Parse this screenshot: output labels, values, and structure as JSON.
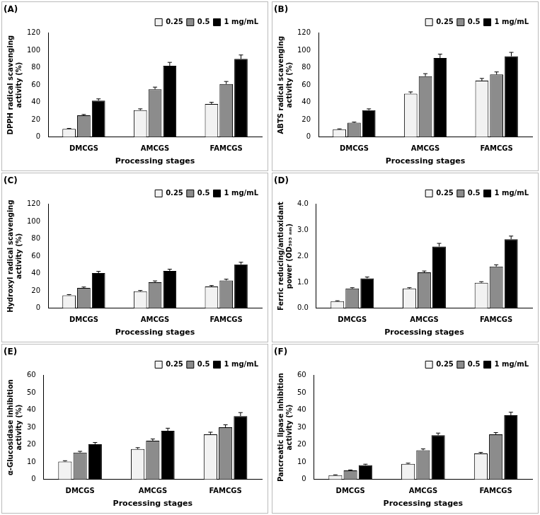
{
  "chart_data": [
    {
      "type": "bar",
      "title": "(A)",
      "x_label": "Processing stages",
      "y_label": [
        "DPPH radical scavenging",
        "activity (%)"
      ],
      "categories": [
        "DMCGS",
        "AMCGS",
        "FAMCGS"
      ],
      "series": [
        {
          "name": "0.25",
          "color": "#f2f2f2",
          "values": [
            9.5,
            31,
            38
          ],
          "errors": [
            0.5,
            1.5,
            2
          ]
        },
        {
          "name": "0.5",
          "color": "#8c8c8c",
          "values": [
            25,
            55,
            61
          ],
          "errors": [
            1,
            2.5,
            3
          ]
        },
        {
          "name": "1 mg/mL",
          "color": "#000000",
          "values": [
            42,
            82,
            90
          ],
          "errors": [
            2,
            4,
            4.5
          ]
        }
      ],
      "ylim": [
        0,
        120
      ],
      "yticks": [
        0,
        20,
        40,
        60,
        80,
        100,
        120
      ],
      "grid": false,
      "legend": "top-right"
    },
    {
      "type": "bar",
      "title": "(B)",
      "x_label": "Processing stages",
      "y_label": [
        "ABTS radical scavenging",
        "activity (%)"
      ],
      "categories": [
        "DMCGS",
        "AMCGS",
        "FAMCGS"
      ],
      "series": [
        {
          "name": "0.25",
          "color": "#f2f2f2",
          "values": [
            9,
            50,
            65
          ],
          "errors": [
            0.5,
            2,
            2.5
          ]
        },
        {
          "name": "0.5",
          "color": "#8c8c8c",
          "values": [
            16.5,
            70,
            72
          ],
          "errors": [
            0.8,
            3,
            3
          ]
        },
        {
          "name": "1 mg/mL",
          "color": "#000000",
          "values": [
            31,
            91,
            93
          ],
          "errors": [
            1.5,
            4.5,
            4.5
          ]
        }
      ],
      "ylim": [
        0,
        120
      ],
      "yticks": [
        0,
        20,
        40,
        60,
        80,
        100,
        120
      ],
      "grid": false,
      "legend": "top-right"
    },
    {
      "type": "bar",
      "title": "(C)",
      "x_label": "Processing stages",
      "y_label": [
        "Hydroxyl radical scavenging",
        "activity (%)"
      ],
      "categories": [
        "DMCGS",
        "AMCGS",
        "FAMCGS"
      ],
      "series": [
        {
          "name": "0.25",
          "color": "#f2f2f2",
          "values": [
            15,
            19.5,
            25
          ],
          "errors": [
            0.7,
            1,
            1.2
          ]
        },
        {
          "name": "0.5",
          "color": "#8c8c8c",
          "values": [
            23.5,
            30,
            32
          ],
          "errors": [
            1,
            1.5,
            1.5
          ]
        },
        {
          "name": "1 mg/mL",
          "color": "#000000",
          "values": [
            40.5,
            43,
            50.5
          ],
          "errors": [
            2,
            2,
            2.5
          ]
        }
      ],
      "ylim": [
        0,
        120
      ],
      "yticks": [
        0,
        20,
        40,
        60,
        80,
        100,
        120
      ],
      "grid": false,
      "legend": "top-right"
    },
    {
      "type": "bar",
      "title": "(D)",
      "x_label": "Processing stages",
      "y_label": [
        "Ferric reducing/antioxidant",
        "power (OD₅₉₃ ₙₘ)"
      ],
      "categories": [
        "DMCGS",
        "AMCGS",
        "FAMCGS"
      ],
      "series": [
        {
          "name": "0.25",
          "color": "#f2f2f2",
          "values": [
            0.27,
            0.76,
            0.98
          ],
          "errors": [
            0.02,
            0.03,
            0.04
          ]
        },
        {
          "name": "0.5",
          "color": "#8c8c8c",
          "values": [
            0.76,
            1.38,
            1.6
          ],
          "errors": [
            0.03,
            0.05,
            0.07
          ]
        },
        {
          "name": "1 mg/mL",
          "color": "#000000",
          "values": [
            1.15,
            2.37,
            2.65
          ],
          "errors": [
            0.05,
            0.12,
            0.12
          ]
        }
      ],
      "ylim": [
        0,
        4
      ],
      "yticks": [
        {
          "value": 0,
          "label": "0.0"
        },
        {
          "value": 1,
          "label": "1.0"
        },
        {
          "value": 2,
          "label": "2.0"
        },
        {
          "value": 3,
          "label": "3.0"
        },
        {
          "value": 4,
          "label": "4.0"
        }
      ],
      "grid": false,
      "legend": "top-right"
    },
    {
      "type": "bar",
      "title": "(E)",
      "x_label": "Processing stages",
      "y_label": [
        "α-Glucosidase inhibition",
        "activity (%)"
      ],
      "categories": [
        "DMCGS",
        "AMCGS",
        "FAMCGS"
      ],
      "series": [
        {
          "name": "0.25",
          "color": "#f2f2f2",
          "values": [
            10.3,
            17.5,
            26
          ],
          "errors": [
            0.5,
            0.8,
            1.2
          ]
        },
        {
          "name": "0.5",
          "color": "#8c8c8c",
          "values": [
            15.5,
            22.3,
            30
          ],
          "errors": [
            0.7,
            1,
            1.5
          ]
        },
        {
          "name": "1 mg/mL",
          "color": "#000000",
          "values": [
            20.3,
            28,
            36.5
          ],
          "errors": [
            1,
            1.5,
            2
          ]
        }
      ],
      "ylim": [
        0,
        60
      ],
      "yticks": [
        0,
        10,
        20,
        30,
        40,
        50,
        60
      ],
      "grid": false,
      "legend": "top-right"
    },
    {
      "type": "bar",
      "title": "(F)",
      "x_label": "Processing stages",
      "y_label": [
        "Pancreatic lipase inhibition",
        "activity (%)"
      ],
      "categories": [
        "DMCGS",
        "AMCGS",
        "FAMCGS"
      ],
      "series": [
        {
          "name": "0.25",
          "color": "#f2f2f2",
          "values": [
            2.5,
            9,
            15
          ],
          "errors": [
            0.2,
            0.4,
            0.6
          ]
        },
        {
          "name": "0.5",
          "color": "#8c8c8c",
          "values": [
            5.2,
            16.8,
            26
          ],
          "errors": [
            0.3,
            0.8,
            1
          ]
        },
        {
          "name": "1 mg/mL",
          "color": "#000000",
          "values": [
            8.3,
            25.5,
            37
          ],
          "errors": [
            0.5,
            1.2,
            1.7
          ]
        }
      ],
      "ylim": [
        0,
        60
      ],
      "yticks": [
        0,
        10,
        20,
        30,
        40,
        50,
        60
      ],
      "grid": false,
      "legend": "top-right"
    }
  ]
}
